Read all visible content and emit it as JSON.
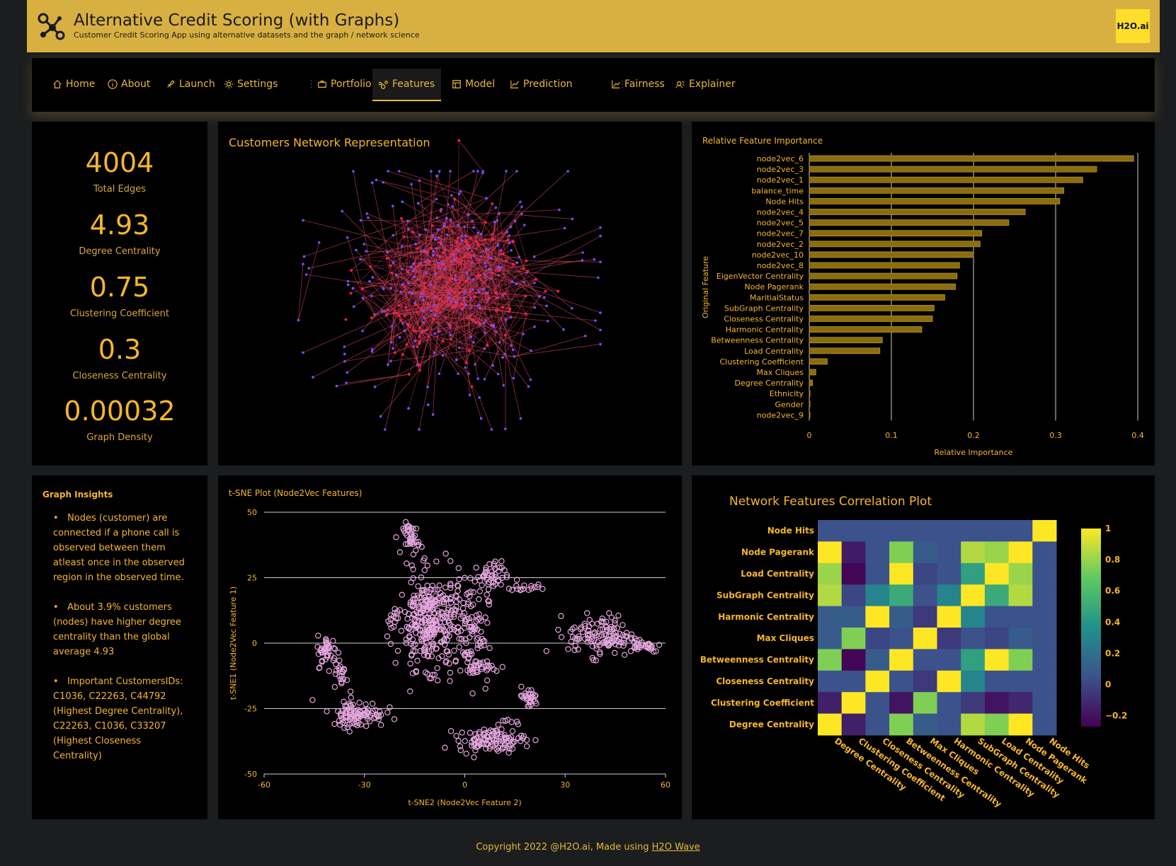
{
  "header": {
    "title": "Alternative Credit Scoring (with Graphs)",
    "subtitle": "Customer Credit Scoring App using alternative datasets and the graph / network science",
    "brand": "H2O.ai"
  },
  "nav": {
    "tabs": [
      {
        "label": "Home",
        "icon": "home-icon"
      },
      {
        "label": "About",
        "icon": "info-icon"
      },
      {
        "label": "Launch",
        "icon": "rocket-icon"
      },
      {
        "label": "Settings",
        "icon": "gear-icon"
      },
      {
        "label": "Portfolio",
        "icon": "portfolio-icon"
      },
      {
        "label": "Features",
        "icon": "features-icon",
        "active": true
      },
      {
        "label": "Model",
        "icon": "model-icon"
      },
      {
        "label": "Prediction",
        "icon": "line-chart-icon"
      },
      {
        "label": "Fairness",
        "icon": "fairness-icon"
      },
      {
        "label": "Explainer",
        "icon": "explainer-icon"
      }
    ]
  },
  "stats": [
    {
      "value": "4004",
      "label": "Total Edges"
    },
    {
      "value": "4.93",
      "label": "Degree Centrality"
    },
    {
      "value": "0.75",
      "label": "Clustering Coefficient"
    },
    {
      "value": "0.3",
      "label": "Closeness Centrality"
    },
    {
      "value": "0.00032",
      "label": "Graph Density"
    }
  ],
  "network": {
    "title": "Customers Network Representation"
  },
  "insights": {
    "title": "Graph Insights",
    "bullets": [
      "Nodes (customer) are connected if a phone call is observed between them atleast once in the observed region in the observed time.",
      "About 3.9% customers (nodes) have higher degree centrality than the global average 4.93",
      "Important CustomersIDs: C1036, C22263, C44792 (Highest Degree Centrality), C22263, C1036, C33207 (Highest Closeness Centrality)"
    ]
  },
  "footer": {
    "text": "Copyright 2022 @H2O.ai, Made using ",
    "link": "H2O Wave"
  },
  "chart_data": [
    {
      "type": "bar",
      "orientation": "horizontal",
      "title": "Relative Feature Importance",
      "xlabel": "Relative Importance",
      "ylabel": "Original Feature",
      "xlim": [
        0,
        0.4
      ],
      "xticks": [
        "0",
        "0.1",
        "0.2",
        "0.3",
        "0.4"
      ],
      "categories": [
        "node2vec_6",
        "node2vec_3",
        "node2vec_1",
        "balance_time",
        "Node Hits",
        "node2vec_4",
        "node2vec_5",
        "node2vec_7",
        "node2vec_2",
        "node2vec_10",
        "node2vec_8",
        "EigenVector Centrality",
        "Node Pagerank",
        "MaritialStatus",
        "SubGraph Centrality",
        "Closeness Centrality",
        "Harmonic Centrality",
        "Betweenness Centrality",
        "Load Centrality",
        "Clustering Coefficient",
        "Max Cliques",
        "Degree Centrality",
        "Ethnicity",
        "Gender",
        "node2vec_9"
      ],
      "values": [
        0.395,
        0.35,
        0.333,
        0.31,
        0.305,
        0.263,
        0.243,
        0.21,
        0.208,
        0.2,
        0.183,
        0.18,
        0.178,
        0.165,
        0.152,
        0.15,
        0.137,
        0.089,
        0.086,
        0.022,
        0.008,
        0.004,
        0.001,
        0.001,
        0.001
      ],
      "color": "#8a6d10",
      "grid": true
    },
    {
      "type": "scatter",
      "title": "t-SNE Plot (Node2Vec Features)",
      "xlabel": "t-SNE2 (Node2Vec Feature 2)",
      "ylabel": "t-SNE1 (Node2Vec Feature 1)",
      "xlim": [
        -60,
        60
      ],
      "ylim": [
        -50,
        50
      ],
      "xticks": [
        "-60",
        "-30",
        "0",
        "30",
        "60"
      ],
      "yticks": [
        "50",
        "25",
        "0",
        "-25",
        "-50"
      ],
      "marker_color": "#e4a6dc",
      "clusters": [
        {
          "cx": -16,
          "cy": 40,
          "sx": 1.2,
          "sy": 3,
          "n": 40
        },
        {
          "cx": -10,
          "cy": 8,
          "sx": 5,
          "sy": 9,
          "n": 320
        },
        {
          "cx": 2,
          "cy": 4,
          "sx": 2.5,
          "sy": 10,
          "n": 80
        },
        {
          "cx": 7,
          "cy": 25,
          "sx": 3,
          "sy": 3,
          "n": 50
        },
        {
          "cx": 18,
          "cy": 21,
          "sx": 2,
          "sy": 0.7,
          "n": 14
        },
        {
          "cx": -21,
          "cy": 10,
          "sx": 0.6,
          "sy": 1.5,
          "n": 10
        },
        {
          "cx": 5,
          "cy": -9,
          "sx": 3,
          "sy": 1.2,
          "n": 24
        },
        {
          "cx": 41,
          "cy": 3,
          "sx": 5,
          "sy": 4,
          "n": 120
        },
        {
          "cx": 53,
          "cy": -1,
          "sx": 3,
          "sy": 1.2,
          "n": 30
        },
        {
          "cx": -41,
          "cy": -3,
          "sx": 1.5,
          "sy": 3,
          "n": 40
        },
        {
          "cx": -37,
          "cy": -12,
          "sx": 1,
          "sy": 3,
          "n": 20
        },
        {
          "cx": -32,
          "cy": -27,
          "sx": 4,
          "sy": 2.5,
          "n": 100
        },
        {
          "cx": 19,
          "cy": -21,
          "sx": 1.5,
          "sy": 2,
          "n": 30
        },
        {
          "cx": 8,
          "cy": -37,
          "sx": 5,
          "sy": 2.2,
          "n": 110
        },
        {
          "cx": 13,
          "cy": -30,
          "sx": 1.5,
          "sy": 0.7,
          "n": 6
        }
      ]
    },
    {
      "type": "heatmap",
      "title": "Network Features Correlation Plot",
      "colorscale": "viridis",
      "zlim": [
        -0.27,
        1
      ],
      "colorbar_ticks": [
        "1",
        "0.8",
        "0.6",
        "0.4",
        "0.2",
        "0",
        "−0.2"
      ],
      "rows": [
        "Node Hits",
        "Node Pagerank",
        "Load Centrality",
        "SubGraph Centrality",
        "Harmonic Centrality",
        "Max Cliques",
        "Betweenness Centrality",
        "Closeness Centrality",
        "Clustering Coefficient",
        "Degree Centrality"
      ],
      "cols": [
        "Degree Centrality",
        "Clustering Coefficient",
        "Closeness Centrality",
        "Betweenness Centrality",
        "Max Cliques",
        "Harmonic Centrality",
        "SubGraph Centrality",
        "Load Centrality",
        "Node Pagerank",
        "Node Hits"
      ],
      "values": [
        [
          0.05,
          0.05,
          0.05,
          0.05,
          0.05,
          0.05,
          0.05,
          0.05,
          0.05,
          1
        ],
        [
          1,
          -0.17,
          0.05,
          0.75,
          0.1,
          0.05,
          0.85,
          0.8,
          1,
          0.05
        ],
        [
          0.8,
          -0.25,
          0.05,
          1,
          0,
          0.05,
          0.45,
          1,
          0.8,
          0.05
        ],
        [
          0.85,
          0,
          0.3,
          0.5,
          0.05,
          0.3,
          1,
          0.5,
          0.85,
          0.05
        ],
        [
          0.1,
          0.1,
          1,
          0.1,
          -0.05,
          1,
          0.3,
          0.05,
          0.05,
          0.05
        ],
        [
          0.1,
          0.75,
          0,
          0.05,
          1,
          -0.05,
          0.05,
          0,
          0.1,
          0.05
        ],
        [
          0.75,
          -0.25,
          0.1,
          1,
          0.05,
          0.05,
          0.45,
          1,
          0.75,
          0.05
        ],
        [
          0.05,
          0.05,
          1,
          0.05,
          -0.05,
          1,
          0.3,
          0.05,
          0.05,
          0.05
        ],
        [
          -0.15,
          1,
          0.05,
          -0.2,
          0.75,
          0.05,
          -0.05,
          -0.2,
          -0.12,
          0.05
        ],
        [
          1,
          -0.15,
          0.05,
          0.75,
          0.1,
          0.05,
          0.85,
          0.75,
          1,
          0.05
        ]
      ]
    }
  ]
}
